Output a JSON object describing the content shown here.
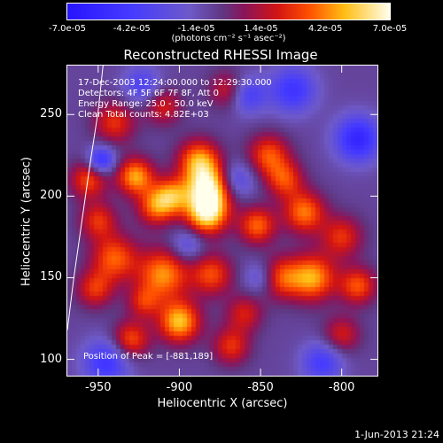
{
  "colorbar": {
    "labels": [
      "-7.0e-05",
      "-4.2e-05",
      "-1.4e-05",
      "1.4e-05",
      "4.2e-05",
      "7.0e-05"
    ],
    "unit_label": "(photons cm⁻² s⁻¹ asec⁻²)",
    "range": [
      -7e-05,
      7e-05
    ]
  },
  "annotations": {
    "time_range": "17-Dec-2003 12:24:00.000 to 12:29:30.000",
    "detectors": "Detectors: 4F 5F 6F 7F 8F, Att 0",
    "energy": "Energy Range: 25.0 - 50.0 keV",
    "clean": "Clean     Total counts: 4.82E+03",
    "peak": "Position of Peak = [-881,189]"
  },
  "footer": "1-Jun-2013 21:24",
  "chart_data": {
    "type": "heatmap",
    "title": "Reconstructed RHESSI Image",
    "xlabel": "Heliocentric X (arcsec)",
    "ylabel": "Heliocentric Y (arcsec)",
    "xlim": [
      -969,
      -778
    ],
    "ylim": [
      90,
      280
    ],
    "x_ticks": [
      -950,
      -900,
      -850,
      -800
    ],
    "y_ticks": [
      100,
      150,
      200,
      250
    ],
    "peak": [
      -881,
      189
    ],
    "colormap": "blue-purple-red-yellow-white",
    "limb_curve": [
      [
        -969,
        118
      ],
      [
        -965,
        150
      ],
      [
        -960,
        185
      ],
      [
        -955,
        220
      ],
      [
        -950,
        252
      ],
      [
        -947,
        280
      ]
    ],
    "blobs": [
      {
        "x": -882,
        "y": 205,
        "v": 7e-05,
        "s": 10
      },
      {
        "x": -883,
        "y": 189,
        "v": 6.5e-05,
        "s": 9
      },
      {
        "x": -888,
        "y": 222,
        "v": 5e-05,
        "s": 9
      },
      {
        "x": -927,
        "y": 212,
        "v": 5.5e-05,
        "s": 8
      },
      {
        "x": -905,
        "y": 200,
        "v": 4.8e-05,
        "s": 8
      },
      {
        "x": -915,
        "y": 193,
        "v": 4e-05,
        "s": 8
      },
      {
        "x": -940,
        "y": 162,
        "v": 4.4e-05,
        "s": 10
      },
      {
        "x": -910,
        "y": 152,
        "v": 5.2e-05,
        "s": 11
      },
      {
        "x": -880,
        "y": 152,
        "v": 4e-05,
        "s": 9
      },
      {
        "x": -900,
        "y": 123,
        "v": 6e-05,
        "s": 9
      },
      {
        "x": -930,
        "y": 112,
        "v": 4.2e-05,
        "s": 8
      },
      {
        "x": -952,
        "y": 143,
        "v": 3.5e-05,
        "s": 8
      },
      {
        "x": -956,
        "y": 210,
        "v": 4e-05,
        "s": 8
      },
      {
        "x": -950,
        "y": 185,
        "v": 3.5e-05,
        "s": 8
      },
      {
        "x": -940,
        "y": 245,
        "v": 3.5e-05,
        "s": 9
      },
      {
        "x": -910,
        "y": 255,
        "v": 3e-05,
        "s": 8
      },
      {
        "x": -870,
        "y": 265,
        "v": 3e-05,
        "s": 8
      },
      {
        "x": -845,
        "y": 225,
        "v": 4.2e-05,
        "s": 9
      },
      {
        "x": -835,
        "y": 210,
        "v": 3.8e-05,
        "s": 8
      },
      {
        "x": -852,
        "y": 182,
        "v": 4.5e-05,
        "s": 8
      },
      {
        "x": -823,
        "y": 190,
        "v": 4.8e-05,
        "s": 9
      },
      {
        "x": -818,
        "y": 150,
        "v": 5.5e-05,
        "s": 10
      },
      {
        "x": -838,
        "y": 150,
        "v": 4e-05,
        "s": 9
      },
      {
        "x": -800,
        "y": 175,
        "v": 3.5e-05,
        "s": 9
      },
      {
        "x": -790,
        "y": 145,
        "v": 4.2e-05,
        "s": 8
      },
      {
        "x": -800,
        "y": 115,
        "v": 3e-05,
        "s": 8
      },
      {
        "x": -860,
        "y": 128,
        "v": 3e-05,
        "s": 8
      },
      {
        "x": -868,
        "y": 108,
        "v": 3.5e-05,
        "s": 8
      },
      {
        "x": -922,
        "y": 135,
        "v": 3e-05,
        "s": 7
      },
      {
        "x": -790,
        "y": 235,
        "v": -5e-05,
        "s": 10
      },
      {
        "x": -830,
        "y": 265,
        "v": -4e-05,
        "s": 10
      },
      {
        "x": -858,
        "y": 262,
        "v": -3.5e-05,
        "s": 8
      },
      {
        "x": -948,
        "y": 222,
        "v": -4.5e-05,
        "s": 6
      },
      {
        "x": -923,
        "y": 268,
        "v": -3e-05,
        "s": 8
      },
      {
        "x": -945,
        "y": 98,
        "v": -4e-05,
        "s": 10
      },
      {
        "x": -812,
        "y": 98,
        "v": -3.5e-05,
        "s": 9
      },
      {
        "x": -850,
        "y": 150,
        "v": -2.5e-05,
        "s": 7
      },
      {
        "x": -865,
        "y": 210,
        "v": -3e-05,
        "s": 8
      },
      {
        "x": -895,
        "y": 170,
        "v": -2.5e-05,
        "s": 7
      }
    ],
    "background": -8e-06
  }
}
